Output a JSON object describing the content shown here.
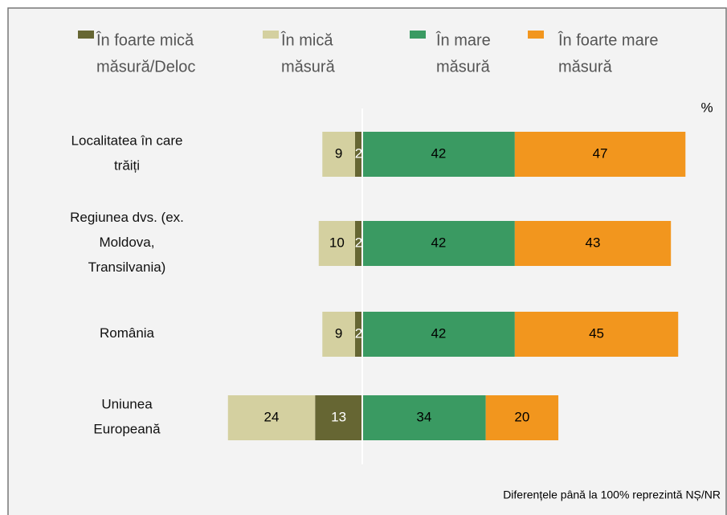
{
  "chart_data": {
    "type": "diverging_bar",
    "categories": [
      "Localitatea în care\ntrăiți",
      "Regiunea dvs. (ex.\nMoldova,\nTransilvania)",
      "România",
      "Uniunea\nEuropeană"
    ],
    "series": [
      {
        "name": "În foarte mică\nmăsură/Deloc",
        "color": "#666633",
        "label_color": "#ffffff",
        "side": "left",
        "values": [
          2,
          2,
          2,
          13
        ]
      },
      {
        "name": "În mică\nmăsură",
        "color": "#d4d0a0",
        "label_color": "#000000",
        "side": "left",
        "values": [
          9,
          10,
          9,
          24
        ]
      },
      {
        "name": "În mare\nmăsură",
        "color": "#3a9a62",
        "label_color": "#000000",
        "side": "right",
        "values": [
          42,
          42,
          42,
          34
        ]
      },
      {
        "name": "În foarte mare\nmăsură",
        "color": "#f2961e",
        "label_color": "#000000",
        "side": "right",
        "values": [
          47,
          43,
          45,
          20
        ]
      }
    ],
    "unit_label": "%",
    "footnote": "Diferențele până la 100% reprezintă NȘ/NR"
  }
}
